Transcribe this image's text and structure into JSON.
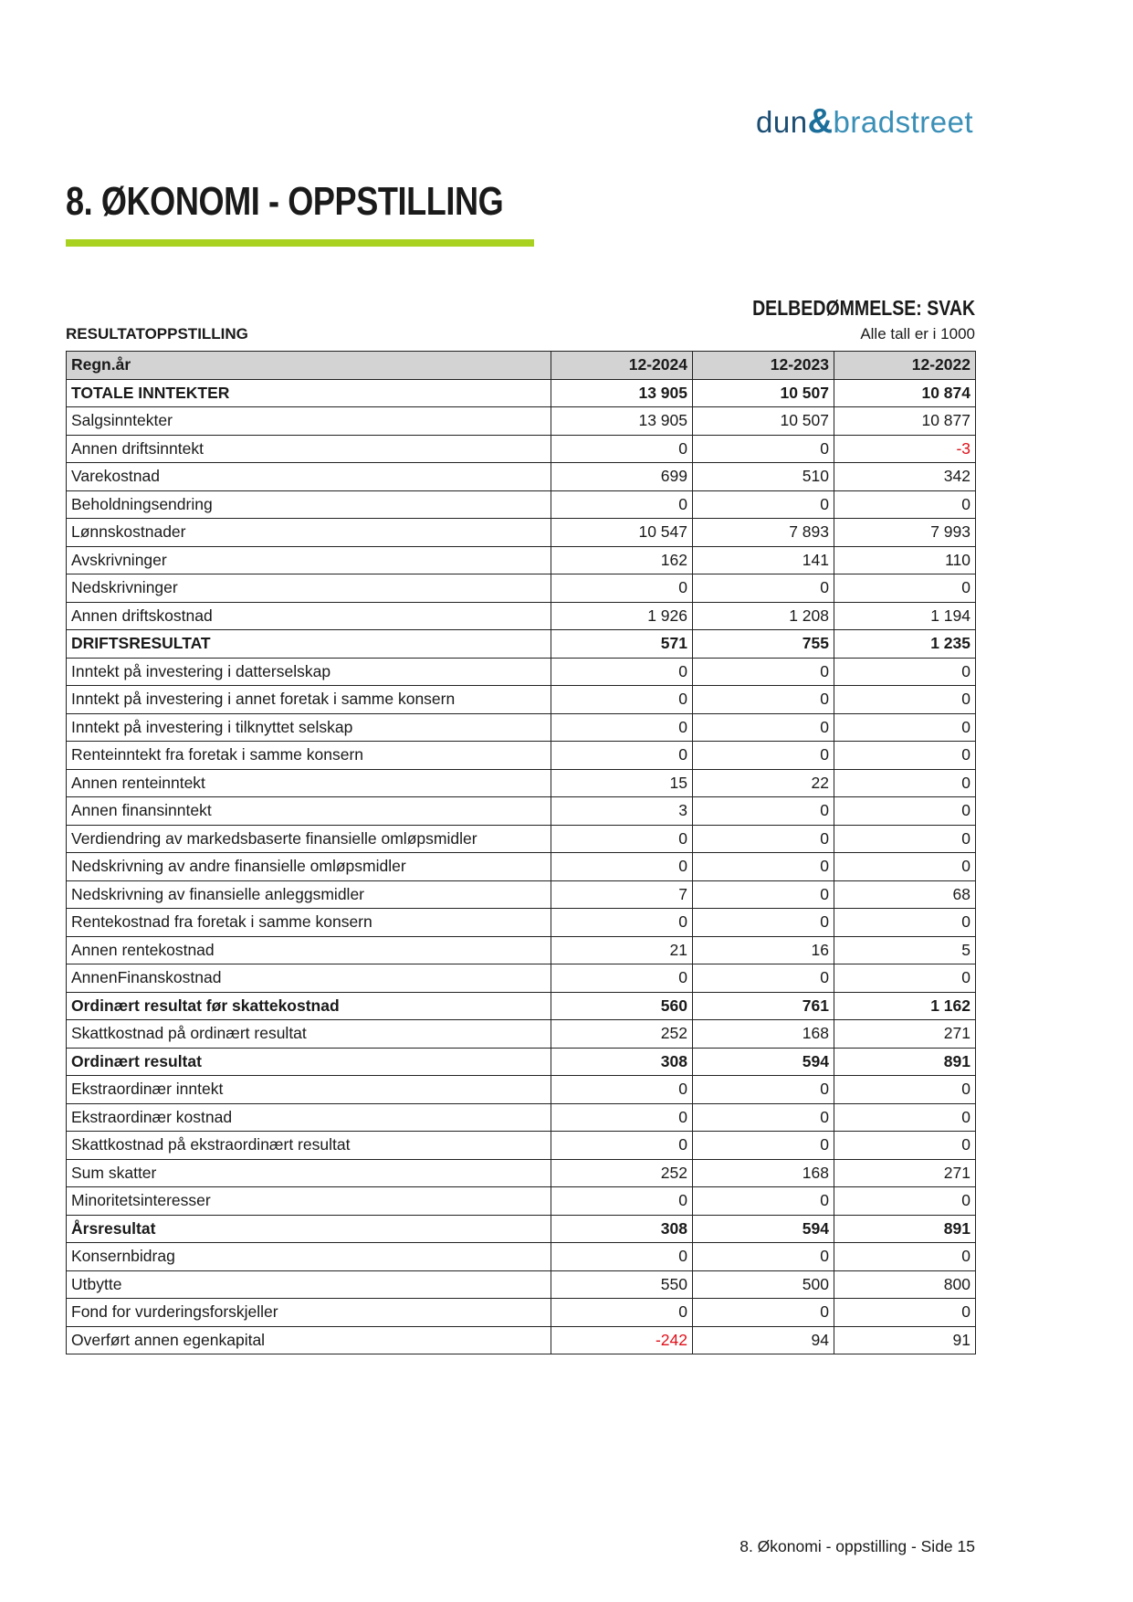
{
  "logo": {
    "part1": "dun",
    "amp": "&",
    "part2": "bradstreet"
  },
  "page_title": "8. ØKONOMI - OPPSTILLING",
  "accent_color": "#a8d21f",
  "negative_color": "#e0101a",
  "rating": "DELBEDØMMELSE: SVAK",
  "section_title": "RESULTATOPPSTILLING",
  "unit_note": "Alle tall er i 1000",
  "table": {
    "headers": [
      "Regn.år",
      "12-2024",
      "12-2023",
      "12-2022"
    ],
    "rows": [
      {
        "label": "TOTALE INNTEKTER",
        "values": [
          "13 905",
          "10 507",
          "10 874"
        ],
        "bold": true
      },
      {
        "label": "Salgsinntekter",
        "values": [
          "13 905",
          "10 507",
          "10 877"
        ]
      },
      {
        "label": "Annen driftsinntekt",
        "values": [
          "0",
          "0",
          "-3"
        ]
      },
      {
        "label": "Varekostnad",
        "values": [
          "699",
          "510",
          "342"
        ]
      },
      {
        "label": "Beholdningsendring",
        "values": [
          "0",
          "0",
          "0"
        ]
      },
      {
        "label": "Lønnskostnader",
        "values": [
          "10 547",
          "7 893",
          "7 993"
        ]
      },
      {
        "label": "Avskrivninger",
        "values": [
          "162",
          "141",
          "110"
        ]
      },
      {
        "label": "Nedskrivninger",
        "values": [
          "0",
          "0",
          "0"
        ]
      },
      {
        "label": "Annen driftskostnad",
        "values": [
          "1 926",
          "1 208",
          "1 194"
        ]
      },
      {
        "label": "DRIFTSRESULTAT",
        "values": [
          "571",
          "755",
          "1 235"
        ],
        "bold": true
      },
      {
        "label": "Inntekt på investering i datterselskap",
        "values": [
          "0",
          "0",
          "0"
        ]
      },
      {
        "label": "Inntekt på investering i annet foretak i samme konsern",
        "values": [
          "0",
          "0",
          "0"
        ]
      },
      {
        "label": "Inntekt på investering i tilknyttet selskap",
        "values": [
          "0",
          "0",
          "0"
        ]
      },
      {
        "label": "Renteinntekt fra foretak i samme konsern",
        "values": [
          "0",
          "0",
          "0"
        ]
      },
      {
        "label": "Annen renteinntekt",
        "values": [
          "15",
          "22",
          "0"
        ]
      },
      {
        "label": "Annen finansinntekt",
        "values": [
          "3",
          "0",
          "0"
        ]
      },
      {
        "label": "Verdiendring av markedsbaserte finansielle omløpsmidler",
        "values": [
          "0",
          "0",
          "0"
        ]
      },
      {
        "label": "Nedskrivning av andre finansielle omløpsmidler",
        "values": [
          "0",
          "0",
          "0"
        ]
      },
      {
        "label": "Nedskrivning av finansielle anleggsmidler",
        "values": [
          "7",
          "0",
          "68"
        ]
      },
      {
        "label": "Rentekostnad fra foretak i samme konsern",
        "values": [
          "0",
          "0",
          "0"
        ]
      },
      {
        "label": "Annen rentekostnad",
        "values": [
          "21",
          "16",
          "5"
        ]
      },
      {
        "label": "AnnenFinanskostnad",
        "values": [
          "0",
          "0",
          "0"
        ]
      },
      {
        "label": "Ordinært resultat før skattekostnad",
        "values": [
          "560",
          "761",
          "1 162"
        ],
        "bold": true
      },
      {
        "label": "Skattkostnad på ordinært resultat",
        "values": [
          "252",
          "168",
          "271"
        ]
      },
      {
        "label": "Ordinært resultat",
        "values": [
          "308",
          "594",
          "891"
        ],
        "bold": true
      },
      {
        "label": "Ekstraordinær inntekt",
        "values": [
          "0",
          "0",
          "0"
        ]
      },
      {
        "label": "Ekstraordinær kostnad",
        "values": [
          "0",
          "0",
          "0"
        ]
      },
      {
        "label": "Skattkostnad på ekstraordinært resultat",
        "values": [
          "0",
          "0",
          "0"
        ]
      },
      {
        "label": "Sum skatter",
        "values": [
          "252",
          "168",
          "271"
        ]
      },
      {
        "label": "Minoritetsinteresser",
        "values": [
          "0",
          "0",
          "0"
        ]
      },
      {
        "label": "Årsresultat",
        "values": [
          "308",
          "594",
          "891"
        ],
        "bold": true
      },
      {
        "label": "Konsernbidrag",
        "values": [
          "0",
          "0",
          "0"
        ]
      },
      {
        "label": "Utbytte",
        "values": [
          "550",
          "500",
          "800"
        ]
      },
      {
        "label": "Fond for vurderingsforskjeller",
        "values": [
          "0",
          "0",
          "0"
        ]
      },
      {
        "label": "Overført annen egenkapital",
        "values": [
          "-242",
          "94",
          "91"
        ]
      }
    ]
  },
  "footer": "8. Økonomi - oppstilling - Side 15"
}
